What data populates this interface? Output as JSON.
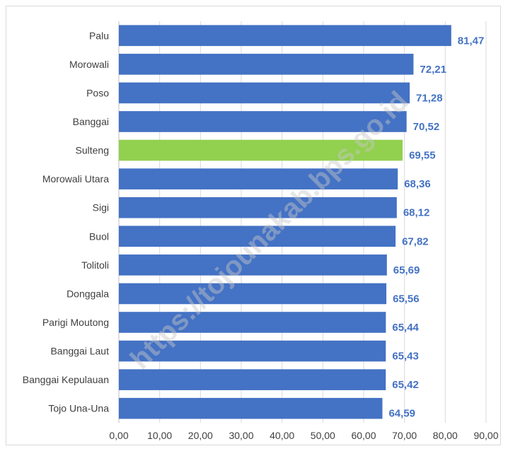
{
  "chart_data": {
    "type": "bar",
    "orientation": "horizontal",
    "categories": [
      "Palu",
      "Morowali",
      "Poso",
      "Banggai",
      "Sulteng",
      "Morowali Utara",
      "Sigi",
      "Buol",
      "Tolitoli",
      "Donggala",
      "Parigi Moutong",
      "Banggai Laut",
      "Banggai Kepulauan",
      "Tojo Una-Una"
    ],
    "values": [
      81.47,
      72.21,
      71.28,
      70.52,
      69.55,
      68.36,
      68.12,
      67.82,
      65.69,
      65.56,
      65.44,
      65.43,
      65.42,
      64.59
    ],
    "value_labels": [
      "81,47",
      "72,21",
      "71,28",
      "70,52",
      "69,55",
      "68,36",
      "68,12",
      "67,82",
      "65,69",
      "65,56",
      "65,44",
      "65,43",
      "65,42",
      "64,59"
    ],
    "highlight_category": "Sulteng",
    "xlim": [
      0,
      90
    ],
    "xticks": [
      "0,00",
      "10,00",
      "20,00",
      "30,00",
      "40,00",
      "50,00",
      "60,00",
      "70,00",
      "80,00",
      "90,00"
    ],
    "grid": "vertical",
    "legend": "none",
    "title": "",
    "xlabel": "",
    "ylabel": "",
    "colors": {
      "bar": "#4472c4",
      "highlight": "#92d050",
      "label": "#4472c4",
      "grid": "#d9d9d9"
    }
  },
  "watermark": "https://tojounakab.bps.go.id"
}
